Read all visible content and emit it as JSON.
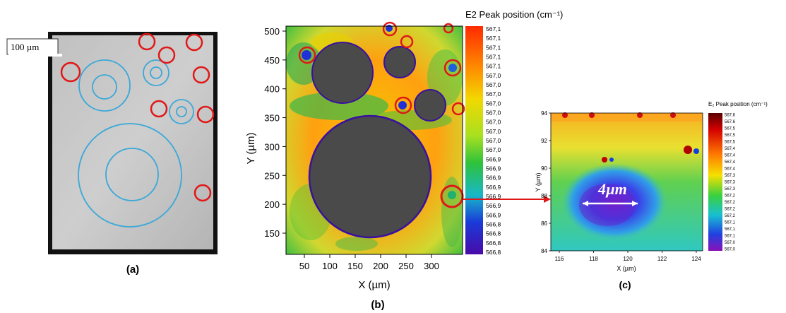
{
  "figure": {
    "panels": [
      {
        "id": "a",
        "caption": "(a)",
        "scale_bar_label": "100 µm"
      },
      {
        "id": "b",
        "caption": "(b)",
        "colorbar_title": "E2 Peak position (cm⁻¹)",
        "colorbar_ticks": [
          "567,1",
          "567,1",
          "567,1",
          "567,1",
          "567,1",
          "567,0",
          "567,0",
          "567,0",
          "567,0",
          "567,0",
          "567,0",
          "567,0",
          "567,0",
          "567,0",
          "566,9",
          "566,9",
          "566,9",
          "566,9",
          "566,9",
          "566,9",
          "566,9",
          "566,8",
          "566,8",
          "566,8",
          "566,8"
        ],
        "xlabel": "X (µm)",
        "ylabel": "Y (µm)",
        "xticks": [
          "50",
          "100",
          "150",
          "200",
          "250",
          "300"
        ],
        "yticks": [
          "500",
          "450",
          "400",
          "350",
          "300",
          "250",
          "200",
          "150"
        ]
      },
      {
        "id": "c",
        "caption": "(c)",
        "colorbar_title": "E₂ Peak position (cm⁻¹)",
        "colorbar_ticks": [
          "567,6",
          "567,6",
          "567,5",
          "567,5",
          "567,5",
          "567,4",
          "567,4",
          "567,4",
          "567,4",
          "567,3",
          "567,3",
          "567,3",
          "567,2",
          "567,2",
          "567,2",
          "567,2",
          "567,1",
          "567,1",
          "567,1",
          "567,0",
          "567,0"
        ],
        "xlabel": "X (µm)",
        "ylabel": "Y (µm)",
        "xticks": [
          "116",
          "118",
          "120",
          "122",
          "124"
        ],
        "yticks": [
          "94",
          "92",
          "90",
          "88",
          "86",
          "84"
        ],
        "annotation": "4µm"
      }
    ]
  },
  "colors": {
    "highlight_circle": "#e01818",
    "ring_circle": "#3aa8d8",
    "void": "#4a4a4a",
    "arrow": "#e01818"
  }
}
